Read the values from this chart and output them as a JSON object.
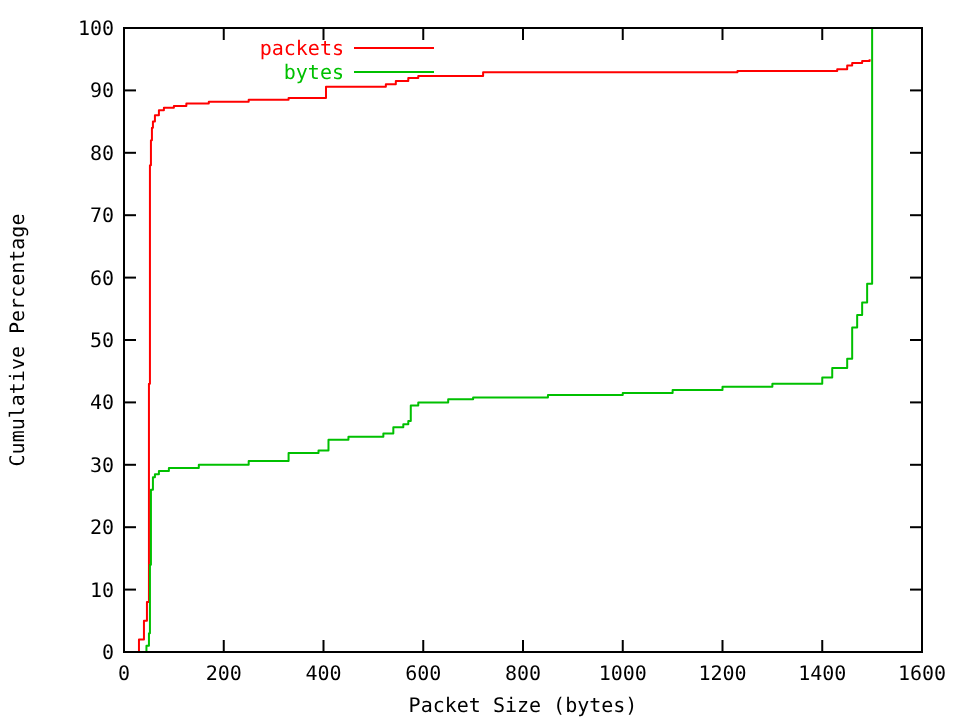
{
  "chart_data": {
    "type": "step",
    "xlabel": "Packet Size (bytes)",
    "ylabel": "Cumulative Percentage",
    "xlim": [
      0,
      1600
    ],
    "ylim": [
      0,
      100
    ],
    "xticks": [
      0,
      200,
      400,
      600,
      800,
      1000,
      1200,
      1400,
      1600
    ],
    "yticks": [
      0,
      10,
      20,
      30,
      40,
      50,
      60,
      70,
      80,
      90,
      100
    ],
    "legend": "top left",
    "grid": false,
    "series": [
      {
        "name": "packets",
        "color": "#ff0000",
        "x": [
          20,
          30,
          40,
          46,
          50,
          52,
          54,
          56,
          58,
          62,
          70,
          80,
          100,
          125,
          170,
          250,
          330,
          405,
          525,
          545,
          570,
          590,
          720,
          1230,
          1430,
          1450,
          1460,
          1480,
          1495
        ],
        "values": [
          0,
          2,
          5,
          8,
          43,
          78,
          82,
          84,
          85,
          86,
          86.8,
          87.2,
          87.5,
          87.9,
          88.2,
          88.5,
          88.8,
          90.6,
          91,
          91.5,
          92,
          92.3,
          92.9,
          93.1,
          93.4,
          94,
          94.4,
          94.7,
          95
        ]
      },
      {
        "name": "bytes",
        "color": "#00c000",
        "x": [
          30,
          45,
          50,
          52,
          54,
          58,
          62,
          70,
          90,
          150,
          250,
          330,
          390,
          410,
          450,
          520,
          540,
          560,
          570,
          575,
          590,
          650,
          700,
          850,
          1000,
          1100,
          1200,
          1300,
          1400,
          1420,
          1450,
          1460,
          1470,
          1480,
          1490,
          1500
        ],
        "values": [
          0,
          1,
          3,
          14,
          26,
          28,
          28.5,
          29,
          29.5,
          30,
          30.6,
          31.9,
          32.3,
          34,
          34.5,
          35,
          36,
          36.5,
          37,
          39.5,
          40,
          40.5,
          40.8,
          41.2,
          41.5,
          42,
          42.5,
          43,
          44,
          45.5,
          47,
          52,
          54,
          56,
          59,
          100
        ]
      }
    ]
  }
}
